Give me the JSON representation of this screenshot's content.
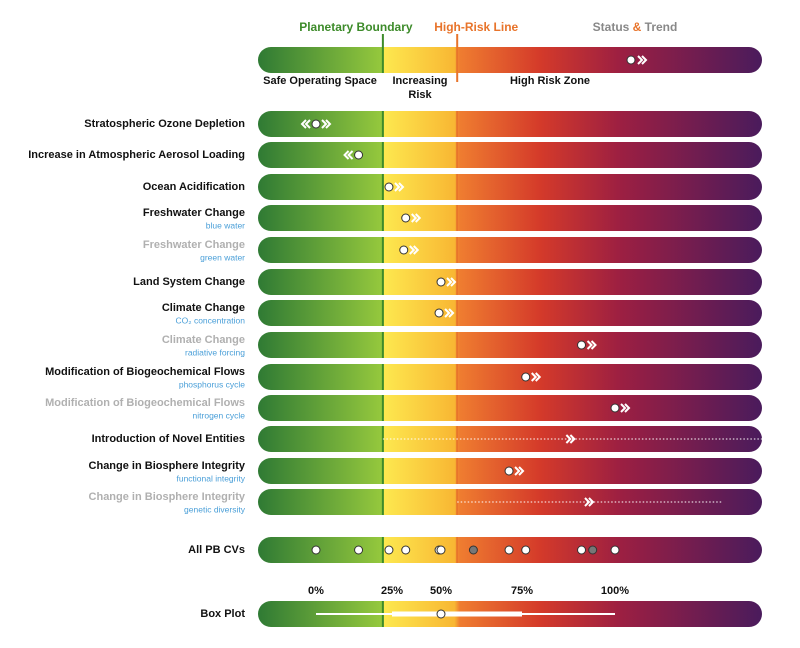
{
  "chart_data": {
    "type": "boundary-bars",
    "legend": {
      "boundary_label": "Planetary Boundary",
      "high_risk_label": "High-Risk Line",
      "status_trend": [
        "Status",
        "&",
        "Trend"
      ],
      "safe": "Safe Operating Space",
      "increasing": [
        "Increasing",
        "Risk"
      ],
      "high_zone": "High Risk Zone"
    },
    "xlim": [
      -19,
      139.5
    ],
    "planetary_boundary": 22,
    "high_risk_line": 55,
    "rows": [
      {
        "label": "Stratospheric Ozone Depletion",
        "value": 0,
        "trend": "both"
      },
      {
        "label": "Increase in Atmospheric Aerosol Loading",
        "value": 14,
        "trend": "left"
      },
      {
        "label": "Ocean Acidification",
        "value": 24,
        "trend": "right"
      },
      {
        "label": "Freshwater Change",
        "sublabel": "blue water",
        "value": 32,
        "trend": "right"
      },
      {
        "label": "Freshwater Change",
        "sublabel": "green water",
        "muted": true,
        "value": 31,
        "trend": "right"
      },
      {
        "label": "Land System Change",
        "value": 50,
        "trend": "right"
      },
      {
        "label": "Climate Change",
        "sublabel": "CO₂ concentration",
        "value": 49,
        "trend": "right"
      },
      {
        "label": "Climate Change",
        "sublabel": "radiative forcing",
        "muted": true,
        "value": 91,
        "trend": "right"
      },
      {
        "label": "Modification of Biogeochemical Flows",
        "sublabel": "phosphorus cycle",
        "value": 76,
        "trend": "right"
      },
      {
        "label": "Modification of Biogeochemical Flows",
        "sublabel": "nitrogen cycle",
        "muted": true,
        "value": 100,
        "trend": "right"
      },
      {
        "label": "Introduction of Novel Entities",
        "value": null,
        "arrow": 88,
        "dotted_range": [
          22,
          139.5
        ],
        "trend": "right"
      },
      {
        "label": "Change in Biosphere Integrity",
        "sublabel": "functional integrity",
        "value": 71,
        "trend": "right"
      },
      {
        "label": "Change in Biosphere Integrity",
        "sublabel": "genetic diversity",
        "muted": true,
        "value": null,
        "arrow": 93,
        "dotted_range": [
          55,
          129
        ],
        "trend": "right"
      }
    ],
    "summary": {
      "label": "All PB CVs",
      "values": [
        0,
        14,
        24,
        32,
        49,
        50,
        60,
        71,
        76,
        91,
        94,
        100
      ],
      "colors": [
        "#ffffff",
        "#ffffff",
        "#ffffff",
        "#ffffff",
        "#ffffff",
        "#ffffff",
        "#777777",
        "#ffffff",
        "#ffffff",
        "#ffffff",
        "#777777",
        "#ffffff"
      ]
    },
    "xticks": [
      {
        "value": 0,
        "label": "0%"
      },
      {
        "value": 25,
        "label": "25%"
      },
      {
        "value": 50,
        "label": "50%"
      },
      {
        "value": 75,
        "label": "75%"
      },
      {
        "value": 100,
        "label": "100%"
      }
    ],
    "box": {
      "label": "Box Plot",
      "min": 0,
      "q1": 25,
      "median": 50,
      "q3": 75,
      "max": 100
    }
  }
}
